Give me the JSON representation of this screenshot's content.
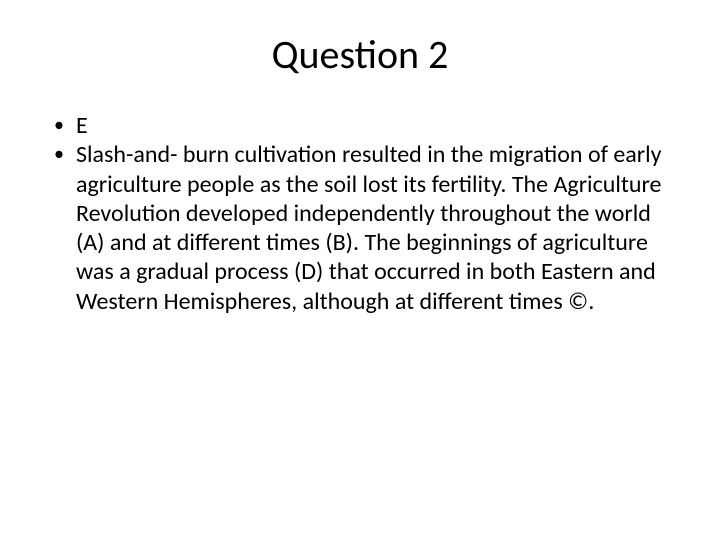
{
  "slide": {
    "title": "Question 2",
    "bullets": [
      "E",
      "Slash-and- burn cultivation resulted in the migration of early agriculture people as the soil lost its fertility. The Agriculture Revolution developed independently throughout the world (A) and at different times (B). The beginnings of agriculture was a gradual process (D) that occurred in both Eastern and Western Hemispheres, although at different times ©."
    ]
  },
  "colors": {
    "background": "#ffffff",
    "text": "#000000"
  },
  "typography": {
    "title_fontsize": 40,
    "body_fontsize": 24,
    "font_family": "Calibri"
  }
}
